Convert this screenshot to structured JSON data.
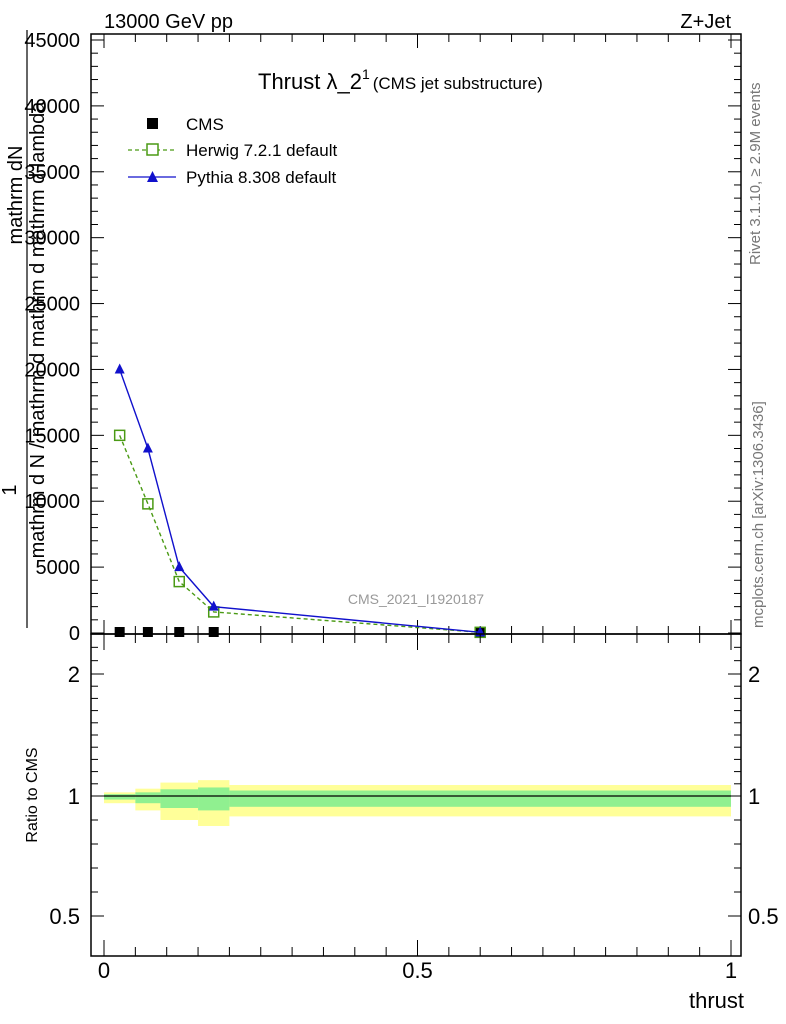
{
  "header": {
    "left": "13000 GeV pp",
    "right": "Z+Jet"
  },
  "side_text": {
    "rivet": "Rivet 3.1.10, ≥ 2.9M events",
    "mcplots": "mcplots.cern.ch [arXiv:1306.3436]"
  },
  "chart_data": [
    {
      "type": "line",
      "title": "Thrust λ_2",
      "title_sup": "1",
      "subtitle": "(CMS jet substructure)",
      "watermark": "CMS_2021_I1920187",
      "ylabel_numerator": "mathrm dN",
      "ylabel_lines": [
        "1",
        "mathrm d N / mathrm d mathrm d mathrm d lambda"
      ],
      "xlim": [
        0,
        1
      ],
      "ylim": [
        0,
        45000
      ],
      "yticks": [
        0,
        5000,
        10000,
        15000,
        20000,
        25000,
        30000,
        35000,
        40000,
        45000
      ],
      "ytick_labels": [
        "0",
        "5000",
        "10000",
        "15000",
        "20000",
        "25000",
        "30000",
        "35000",
        "40000",
        "45000"
      ],
      "legend": [
        "CMS",
        "Herwig 7.2.1 default",
        "Pythia 8.308 default"
      ],
      "series": [
        {
          "name": "CMS",
          "color": "#000000",
          "marker": "square",
          "x": [
            0.025,
            0.07,
            0.12,
            0.175,
            0.6
          ],
          "y": [
            0,
            0,
            0,
            0,
            0
          ]
        },
        {
          "name": "Herwig 7.2.1 default",
          "color": "#4a9a14",
          "marker": "open-square",
          "linestyle": "dashed",
          "x": [
            0.025,
            0.07,
            0.12,
            0.175,
            0.6
          ],
          "y": [
            15000,
            9800,
            3900,
            1600,
            50
          ]
        },
        {
          "name": "Pythia 8.308 default",
          "color": "#1111cc",
          "marker": "triangle",
          "linestyle": "solid",
          "x": [
            0.025,
            0.07,
            0.12,
            0.175,
            0.6
          ],
          "y": [
            20000,
            14000,
            5000,
            2000,
            50
          ]
        }
      ]
    },
    {
      "type": "line",
      "ylabel": "Ratio to CMS",
      "xlabel": "thrust",
      "xlim": [
        0,
        1
      ],
      "ylim": [
        0.4,
        2.3
      ],
      "xticks": [
        0,
        0.5,
        1
      ],
      "xtick_labels": [
        "0",
        "0.5",
        "1"
      ],
      "yticks": [
        0.5,
        1,
        2
      ],
      "ytick_labels": [
        "0.5",
        "1",
        "2"
      ],
      "bins": [
        {
          "x_lo": 0.0,
          "x_hi": 0.05,
          "green": [
            0.985,
            1.015
          ],
          "yellow": [
            0.97,
            1.03
          ]
        },
        {
          "x_lo": 0.05,
          "x_hi": 0.09,
          "green": [
            0.97,
            1.03
          ],
          "yellow": [
            0.94,
            1.06
          ]
        },
        {
          "x_lo": 0.09,
          "x_hi": 0.15,
          "green": [
            0.95,
            1.055
          ],
          "yellow": [
            0.9,
            1.11
          ]
        },
        {
          "x_lo": 0.15,
          "x_hi": 0.2,
          "green": [
            0.94,
            1.07
          ],
          "yellow": [
            0.875,
            1.13
          ]
        },
        {
          "x_lo": 0.2,
          "x_hi": 1.0,
          "green": [
            0.955,
            1.045
          ],
          "yellow": [
            0.915,
            1.09
          ]
        }
      ],
      "band_colors": {
        "inner": "#90f090",
        "outer": "#ffff99"
      },
      "reference_line": 1
    }
  ]
}
